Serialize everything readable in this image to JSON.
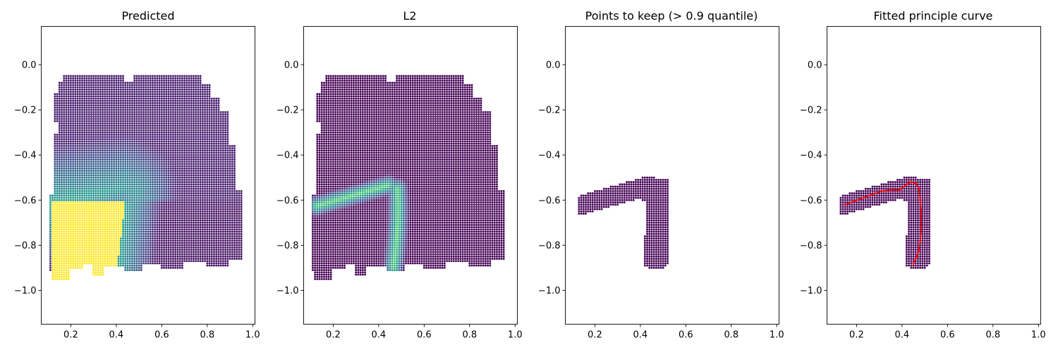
{
  "chart_data": [
    {
      "type": "scatter",
      "title": "Predicted",
      "xlim": [
        0.07,
        1.01
      ],
      "ylim": [
        -1.15,
        0.17
      ],
      "xticks": [
        0.2,
        0.4,
        0.6,
        0.8,
        1.0
      ],
      "yticks": [
        0.0,
        -0.2,
        -0.4,
        -0.6,
        -0.8,
        -1.0
      ],
      "colormap": "viridis",
      "color_field": "predicted",
      "region": "tissue",
      "series": []
    },
    {
      "type": "scatter",
      "title": "L2",
      "xlim": [
        0.07,
        1.01
      ],
      "ylim": [
        -1.15,
        0.17
      ],
      "xticks": [
        0.2,
        0.4,
        0.6,
        0.8,
        1.0
      ],
      "yticks": [
        0.0,
        -0.2,
        -0.4,
        -0.6,
        -0.8,
        -1.0
      ],
      "colormap": "viridis",
      "color_field": "l2",
      "region": "tissue",
      "series": []
    },
    {
      "type": "scatter",
      "title": "Points to keep (> 0.9 quantile)",
      "xlim": [
        0.07,
        1.01
      ],
      "ylim": [
        -1.15,
        0.17
      ],
      "xticks": [
        0.2,
        0.4,
        0.6,
        0.8,
        1.0
      ],
      "yticks": [
        0.0,
        -0.2,
        -0.4,
        -0.6,
        -0.8,
        -1.0
      ],
      "color": "#440154",
      "region": "band",
      "series": []
    },
    {
      "type": "scatter",
      "title": "Fitted principle curve",
      "xlim": [
        0.07,
        1.01
      ],
      "ylim": [
        -1.15,
        0.17
      ],
      "xticks": [
        0.2,
        0.4,
        0.6,
        0.8,
        1.0
      ],
      "yticks": [
        0.0,
        -0.2,
        -0.4,
        -0.6,
        -0.8,
        -1.0
      ],
      "color": "#440154",
      "region": "band",
      "series": [
        {
          "type": "line",
          "color": "#ff0000",
          "x": [
            0.15,
            0.19,
            0.23,
            0.27,
            0.31,
            0.35,
            0.39,
            0.42,
            0.44,
            0.46,
            0.475,
            0.48,
            0.485,
            0.485,
            0.48,
            0.475,
            0.465,
            0.45
          ],
          "y": [
            -0.62,
            -0.605,
            -0.59,
            -0.575,
            -0.56,
            -0.555,
            -0.555,
            -0.53,
            -0.52,
            -0.525,
            -0.55,
            -0.6,
            -0.66,
            -0.72,
            -0.78,
            -0.82,
            -0.85,
            -0.88
          ]
        }
      ]
    }
  ],
  "colors": {
    "viridis_low": "#440154",
    "viridis_high": "#fde725",
    "curve": "#ff0000"
  }
}
